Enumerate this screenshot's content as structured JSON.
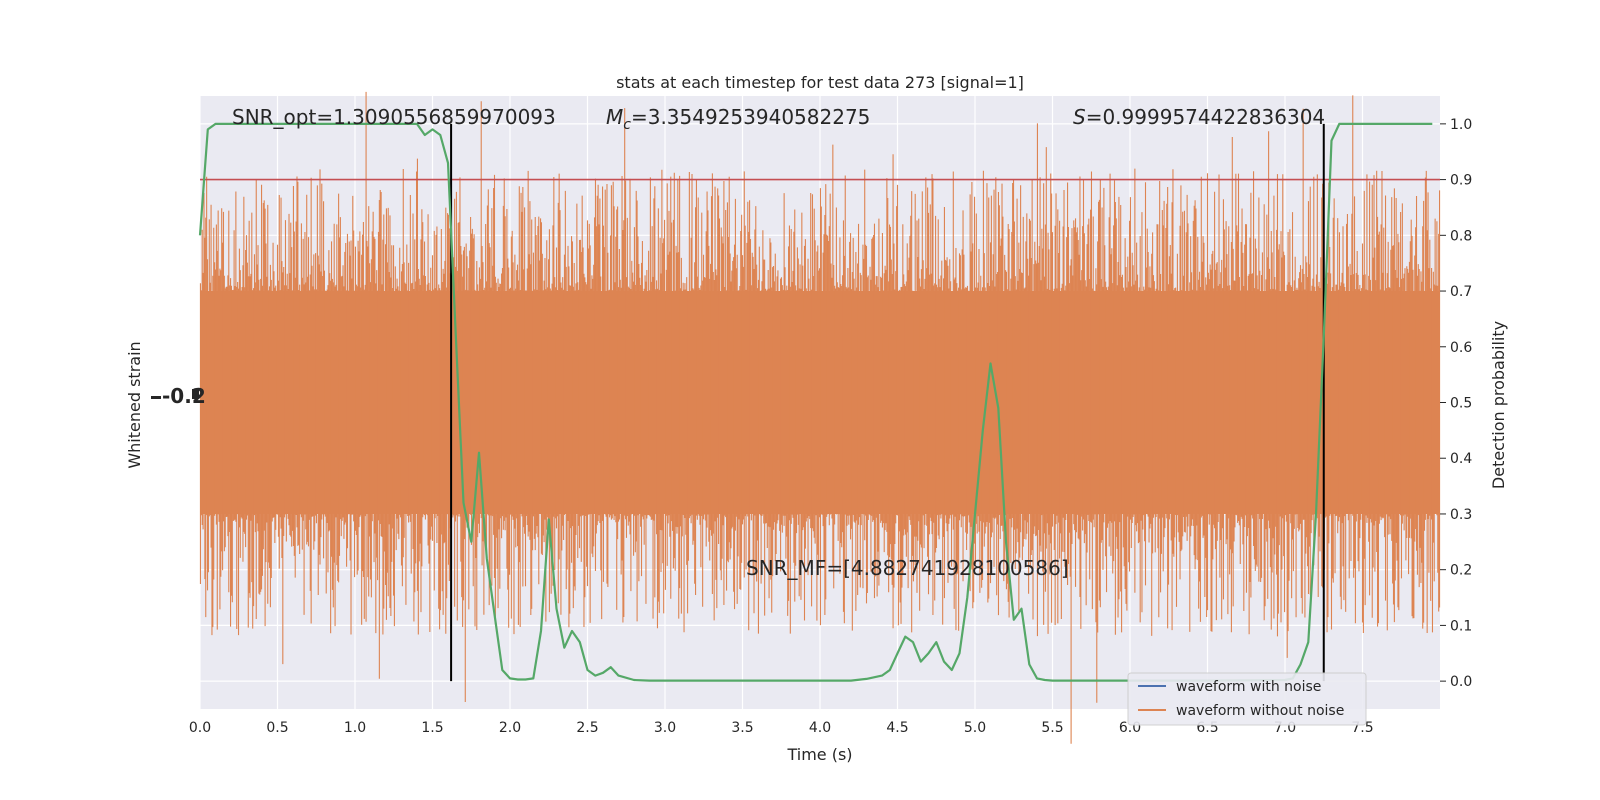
{
  "chart_data": {
    "type": "line",
    "title": "stats at each timestep for test data 273 [signal=1]",
    "xlabel": "Time (s)",
    "ylabel_left": "Whitened strain",
    "ylabel_right": "Detection probability",
    "xlim": [
      0.0,
      8.0
    ],
    "ylim_right": [
      -0.05,
      1.05
    ],
    "x_ticks": [
      "0.0",
      "0.5",
      "1.0",
      "1.5",
      "2.0",
      "2.5",
      "3.0",
      "3.5",
      "4.0",
      "4.5",
      "5.0",
      "5.5",
      "6.0",
      "6.5",
      "7.0",
      "7.5"
    ],
    "y_right_ticks": [
      "0.0",
      "0.1",
      "0.2",
      "0.3",
      "0.4",
      "0.5",
      "0.6",
      "0.7",
      "0.8",
      "0.9",
      "1.0"
    ],
    "left_tick_glyph": "-0.2",
    "grid": true,
    "threshold": 0.9,
    "vlines": [
      1.62,
      7.25
    ],
    "annotations": {
      "snr_opt": "SNR_opt=1.3090556859970093",
      "mc_symbol": "M",
      "mc_sub": "c",
      "mc_value": "=3.3549253940582275",
      "s_symbol": "S",
      "s_value": "=0.9999574422836304",
      "snr_mf": "SNR_MF=[4.882741928100586]"
    },
    "series": [
      {
        "name": "waveform with noise",
        "color": "#4c72b0"
      },
      {
        "name": "waveform without noise",
        "color": "#dd8452"
      }
    ],
    "detection_probability": {
      "color": "#55a868",
      "x": [
        0.0,
        0.05,
        0.1,
        0.2,
        0.3,
        0.5,
        0.8,
        1.0,
        1.2,
        1.4,
        1.45,
        1.5,
        1.55,
        1.6,
        1.65,
        1.7,
        1.75,
        1.8,
        1.85,
        1.9,
        1.95,
        2.0,
        2.05,
        2.1,
        2.15,
        2.2,
        2.25,
        2.3,
        2.35,
        2.4,
        2.45,
        2.5,
        2.55,
        2.6,
        2.65,
        2.7,
        2.8,
        2.9,
        2.95,
        3.0,
        3.2,
        3.5,
        4.0,
        4.2,
        4.3,
        4.4,
        4.45,
        4.5,
        4.55,
        4.6,
        4.65,
        4.7,
        4.75,
        4.8,
        4.85,
        4.9,
        4.95,
        5.0,
        5.05,
        5.1,
        5.15,
        5.2,
        5.25,
        5.3,
        5.35,
        5.4,
        5.45,
        5.5,
        5.55,
        5.6,
        5.65,
        5.7,
        5.75,
        6.0,
        6.5,
        7.0,
        7.05,
        7.1,
        7.15,
        7.2,
        7.25,
        7.3,
        7.35,
        7.4,
        7.5,
        7.6,
        7.8,
        7.95
      ],
      "y": [
        0.8,
        0.99,
        1.0,
        1.0,
        1.0,
        1.0,
        1.0,
        1.0,
        1.0,
        1.0,
        0.98,
        0.99,
        0.98,
        0.93,
        0.62,
        0.32,
        0.25,
        0.41,
        0.22,
        0.12,
        0.02,
        0.005,
        0.003,
        0.003,
        0.005,
        0.09,
        0.29,
        0.13,
        0.06,
        0.09,
        0.07,
        0.02,
        0.01,
        0.015,
        0.025,
        0.01,
        0.002,
        0.001,
        0.001,
        0.001,
        0.001,
        0.001,
        0.001,
        0.001,
        0.004,
        0.01,
        0.02,
        0.05,
        0.08,
        0.07,
        0.035,
        0.05,
        0.07,
        0.035,
        0.02,
        0.05,
        0.15,
        0.3,
        0.45,
        0.57,
        0.49,
        0.25,
        0.11,
        0.13,
        0.03,
        0.005,
        0.002,
        0.001,
        0.001,
        0.001,
        0.001,
        0.001,
        0.001,
        0.001,
        0.001,
        0.002,
        0.005,
        0.03,
        0.07,
        0.3,
        0.62,
        0.97,
        1.0,
        1.0,
        1.0,
        1.0,
        1.0,
        1.0
      ]
    }
  }
}
